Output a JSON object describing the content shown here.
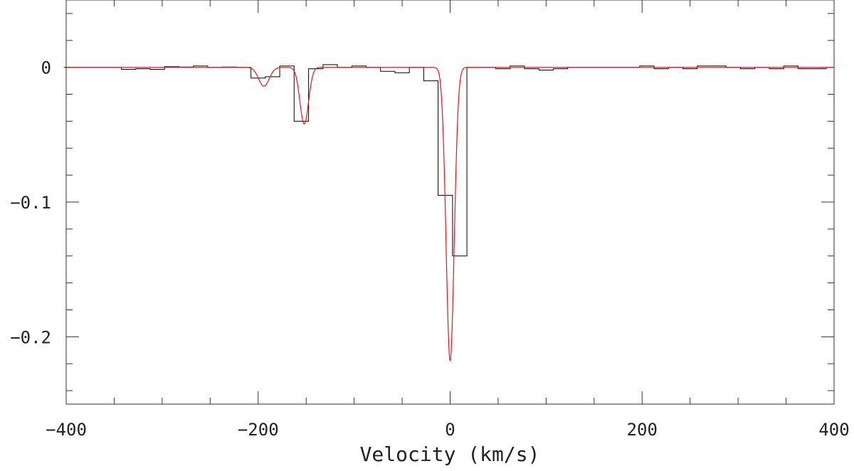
{
  "chart_data": {
    "type": "line",
    "xlabel": "Velocity (km/s)",
    "ylabel": "",
    "xlim": [
      -400,
      400
    ],
    "ylim": [
      -0.25,
      0.05
    ],
    "x_ticks": [
      -400,
      -200,
      0,
      200,
      400
    ],
    "x_tick_labels": [
      "−400",
      "−200",
      "0",
      "200",
      "400"
    ],
    "y_ticks": [
      0,
      -0.1,
      -0.2
    ],
    "y_tick_labels": [
      "0",
      "−0.1",
      "−0.2"
    ],
    "grid": false,
    "legend": "none",
    "series": [
      {
        "style": "step",
        "color": "#000000",
        "x": [
          -395,
          -380,
          -365,
          -350,
          -335,
          -320,
          -305,
          -290,
          -275,
          -260,
          -245,
          -230,
          -215,
          -200,
          -185,
          -170,
          -155,
          -140,
          -125,
          -110,
          -95,
          -80,
          -65,
          -50,
          -35,
          -20,
          -5,
          10,
          25,
          40,
          55,
          70,
          85,
          100,
          115,
          130,
          145,
          160,
          175,
          190,
          205,
          220,
          235,
          250,
          265,
          280,
          295,
          310,
          325,
          340,
          355,
          370,
          385
        ],
        "y": [
          0.0,
          0.0,
          0.0,
          0.0,
          -0.0015,
          -0.001,
          -0.0015,
          0.0005,
          0.0002,
          0.001,
          0.0,
          0.0002,
          0.0,
          -0.008,
          -0.007,
          0.001,
          -0.04,
          -0.001,
          0.002,
          0.0,
          0.001,
          0.0,
          -0.003,
          -0.004,
          0.0,
          -0.01,
          -0.095,
          -0.14,
          0.0,
          0.0,
          -0.001,
          0.001,
          -0.001,
          -0.002,
          -0.001,
          0.0,
          0.0,
          0.0,
          0.0,
          0.0,
          0.001,
          -0.001,
          0.0,
          -0.001,
          0.001,
          0.001,
          0.0,
          -0.001,
          0.0,
          -0.001,
          0.001,
          -0.001,
          -0.001
        ]
      },
      {
        "style": "smooth",
        "color": "#e8141c",
        "components": [
          {
            "center": 0,
            "depth": 0.218,
            "sigma": 4.2
          },
          {
            "center": -152,
            "depth": 0.042,
            "sigma": 4.5
          },
          {
            "center": -194,
            "depth": 0.014,
            "sigma": 5.5
          }
        ]
      }
    ]
  }
}
